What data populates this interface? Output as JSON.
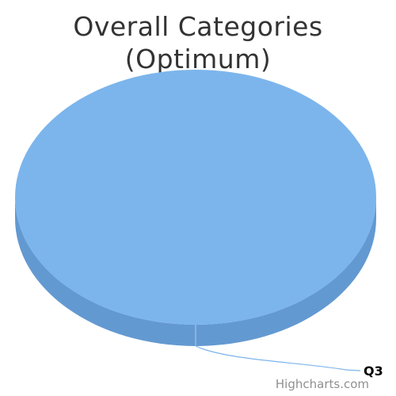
{
  "chart_data": {
    "type": "pie",
    "title_line1": "Overall Categories",
    "title_line2": "(Optimum)",
    "categories": [
      "Q3"
    ],
    "values": [
      100
    ],
    "legend": "none",
    "colors": {
      "slice_top": "#7cb5ec",
      "slice_side": "#6399d1",
      "connector": "#7cb5ec"
    }
  },
  "credits": {
    "text": "Highcharts.com"
  }
}
